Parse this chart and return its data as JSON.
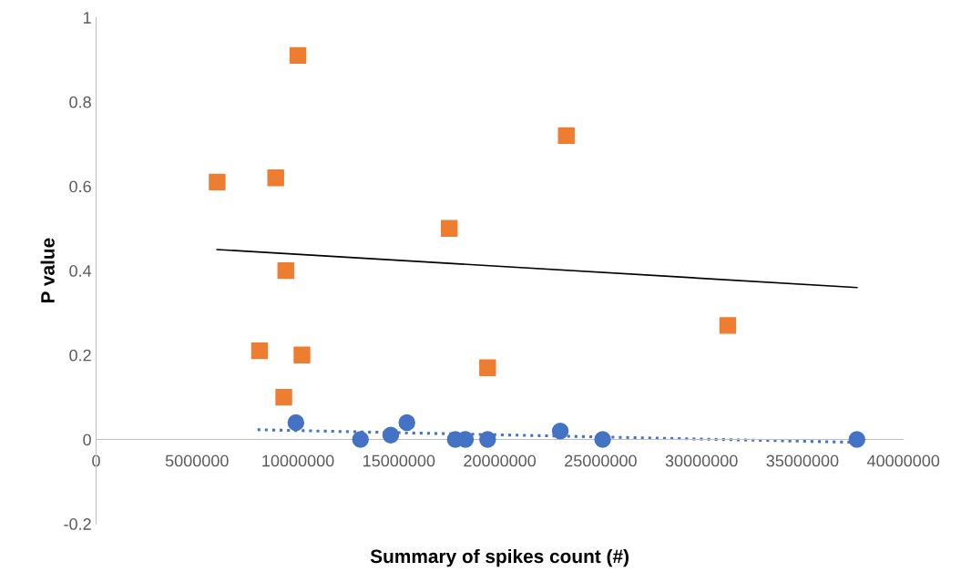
{
  "chart_data": {
    "type": "scatter",
    "xlabel": "Summary of spikes count (#)",
    "ylabel": "P value",
    "xlim": [
      0,
      40000000
    ],
    "xticks": [
      0,
      5000000,
      10000000,
      15000000,
      20000000,
      25000000,
      30000000,
      35000000,
      40000000
    ],
    "ylim": [
      -0.2,
      1
    ],
    "yticks": [
      -0.2,
      0,
      0.2,
      0.4,
      0.6,
      0.8,
      1
    ],
    "grid": false,
    "legend": false,
    "series": [
      {
        "marker": "square",
        "color": "#ed7d31",
        "x": [
          6000000,
          10000000,
          8900000,
          9400000,
          8100000,
          10200000,
          9300000,
          17500000,
          23300000,
          19400000,
          31300000
        ],
        "values": [
          0.61,
          0.91,
          0.62,
          0.4,
          0.21,
          0.2,
          0.1,
          0.5,
          0.72,
          0.17,
          0.27
        ]
      },
      {
        "marker": "circle",
        "color": "#4472c4",
        "x": [
          9900000,
          13100000,
          14600000,
          15400000,
          17800000,
          18300000,
          19400000,
          23000000,
          25100000,
          37700000
        ],
        "values": [
          0.04,
          0.0,
          0.01,
          0.04,
          0.0,
          0.0,
          0.0,
          0.02,
          0.0,
          0.0
        ]
      },
      {
        "type": "line",
        "line_style": "solid",
        "color": "#000000",
        "x": [
          6000000,
          37700000
        ],
        "values": [
          0.45,
          0.36
        ]
      },
      {
        "type": "line",
        "line_style": "dotted",
        "color": "#4472c4",
        "x": [
          8000000,
          37700000
        ],
        "values": [
          0.023,
          -0.007
        ]
      }
    ]
  }
}
